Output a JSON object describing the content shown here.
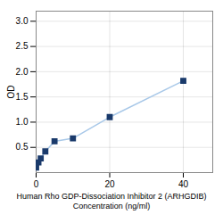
{
  "chart_data": {
    "type": "line",
    "x": [
      0,
      0.625,
      1.25,
      2.5,
      5,
      10,
      20,
      40
    ],
    "values": [
      0.1,
      0.2,
      0.28,
      0.42,
      0.62,
      0.68,
      1.1,
      1.82
    ],
    "xlabel": "Human Rho GDP-Dissociation Inhibitor 2 (ARHGDIB)\nConcentration (ng/ml)",
    "ylabel": "OD",
    "xlim": [
      0,
      48
    ],
    "ylim": [
      0,
      3.2
    ],
    "xticks": [
      0,
      20,
      40
    ],
    "yticks": [
      0.5,
      {
        "value": 1.0,
        "label": "1.0"
      },
      1.5,
      {
        "value": 2.0,
        "label": "2.0"
      },
      2.5,
      {
        "value": 3.0,
        "label": "3.0"
      }
    ],
    "color": "#a8c8e8",
    "colors": [
      "#1a3a6b",
      "#1a3a6b",
      "#1a3a6b",
      "#1a3a6b",
      "#1a3a6b",
      "#1a3a6b",
      "#1a3a6b",
      "#1a3a6b"
    ],
    "marker": "square",
    "grid": true
  }
}
